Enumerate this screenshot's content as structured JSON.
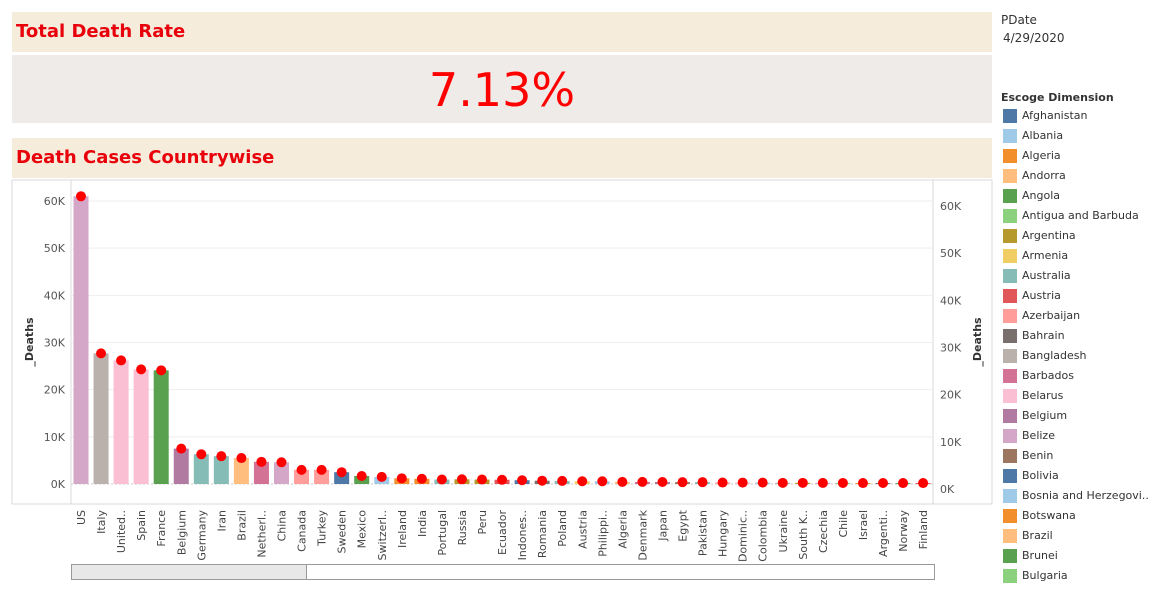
{
  "header": {
    "title": "Total Death Rate"
  },
  "kpi": {
    "value": "7.13%"
  },
  "section": {
    "title": "Death Cases Countrywise"
  },
  "filter": {
    "label": "PDate",
    "value": "4/29/2020"
  },
  "legend": {
    "title": "Escoge Dimension",
    "items": [
      {
        "label": "Afghanistan",
        "color": "#4e79a7"
      },
      {
        "label": "Albania",
        "color": "#a0cbe8"
      },
      {
        "label": "Algeria",
        "color": "#f28e2b"
      },
      {
        "label": "Andorra",
        "color": "#ffbe7d"
      },
      {
        "label": "Angola",
        "color": "#59a14f"
      },
      {
        "label": "Antigua and Barbuda",
        "color": "#8cd17d"
      },
      {
        "label": "Argentina",
        "color": "#b6992d"
      },
      {
        "label": "Armenia",
        "color": "#f1ce63"
      },
      {
        "label": "Australia",
        "color": "#86bcb6"
      },
      {
        "label": "Austria",
        "color": "#e15759"
      },
      {
        "label": "Azerbaijan",
        "color": "#ff9d9a"
      },
      {
        "label": "Bahrain",
        "color": "#79706e"
      },
      {
        "label": "Bangladesh",
        "color": "#bab0ac"
      },
      {
        "label": "Barbados",
        "color": "#d37295"
      },
      {
        "label": "Belarus",
        "color": "#fabfd2"
      },
      {
        "label": "Belgium",
        "color": "#b07aa1"
      },
      {
        "label": "Belize",
        "color": "#d4a6c8"
      },
      {
        "label": "Benin",
        "color": "#9d7660"
      },
      {
        "label": "Bolivia",
        "color": "#4e79a7"
      },
      {
        "label": "Bosnia and Herzegovi..",
        "color": "#a0cbe8"
      },
      {
        "label": "Botswana",
        "color": "#f28e2b"
      },
      {
        "label": "Brazil",
        "color": "#ffbe7d"
      },
      {
        "label": "Brunei",
        "color": "#59a14f"
      },
      {
        "label": "Bulgaria",
        "color": "#8cd17d"
      }
    ]
  },
  "chart_data": {
    "type": "bar",
    "ylabel": "_Deaths",
    "ylabel_right": "_Deaths",
    "ylim": [
      0,
      63000
    ],
    "yticks_left": [
      "0K",
      "10K",
      "20K",
      "30K",
      "40K",
      "50K",
      "60K"
    ],
    "yticks_right": [
      "0K",
      "10K",
      "20K",
      "30K",
      "40K",
      "50K",
      "60K"
    ],
    "grid": true,
    "categories": [
      "US",
      "Italy",
      "United..",
      "Spain",
      "France",
      "Belgium",
      "Germany",
      "Iran",
      "Brazil",
      "Netherl..",
      "China",
      "Canada",
      "Turkey",
      "Sweden",
      "Mexico",
      "Switzerl..",
      "Ireland",
      "India",
      "Portugal",
      "Russia",
      "Peru",
      "Ecuador",
      "Indones..",
      "Romania",
      "Poland",
      "Austria",
      "Philippi..",
      "Algeria",
      "Denmark",
      "Japan",
      "Egypt",
      "Pakistan",
      "Hungary",
      "Dominic..",
      "Colombia",
      "Ukraine",
      "South K..",
      "Czechia",
      "Chile",
      "Israel",
      "Argenti..",
      "Norway",
      "Finland"
    ],
    "series": [
      {
        "type": "bar",
        "values": [
          61000,
          27700,
          26200,
          24300,
          24100,
          7500,
          6300,
          5900,
          5500,
          4700,
          4600,
          3000,
          3000,
          2500,
          1700,
          1500,
          1200,
          1100,
          950,
          1000,
          950,
          900,
          800,
          700,
          650,
          580,
          570,
          440,
          440,
          420,
          390,
          390,
          310,
          300,
          290,
          250,
          250,
          230,
          220,
          200,
          210,
          200,
          200
        ]
      },
      {
        "type": "point",
        "values": [
          61000,
          27700,
          26200,
          24300,
          24100,
          7500,
          6300,
          5900,
          5500,
          4700,
          4600,
          3000,
          3000,
          2500,
          1700,
          1500,
          1200,
          1100,
          950,
          1000,
          950,
          900,
          800,
          700,
          650,
          580,
          570,
          440,
          440,
          420,
          390,
          390,
          310,
          300,
          290,
          250,
          250,
          230,
          220,
          200,
          210,
          200,
          200
        ],
        "color": "#ff0000"
      }
    ],
    "bar_colors": [
      "#d4a6c8",
      "#bab0ac",
      "#fabfd2",
      "#fabfd2",
      "#59a14f",
      "#b07aa1",
      "#86bcb6",
      "#86bcb6",
      "#ffbe7d",
      "#d37295",
      "#d4a6c8",
      "#ff9d9a",
      "#ff9d9a",
      "#4e79a7",
      "#59a14f",
      "#a0cbe8",
      "#f28e2b",
      "#f28e2b",
      "#86bcb6",
      "#b6992d",
      "#b6992d",
      "#e15759",
      "#4e79a7",
      "#79706e",
      "#86bcb6",
      "#f1ce63",
      "#a0cbe8",
      "#ffbe7d",
      "#d37295",
      "#b07aa1",
      "#9d7660",
      "#86bcb6",
      "#ff9d9a",
      "#fabfd2",
      "#a0cbe8",
      "#bab0ac",
      "#b6992d",
      "#d4a6c8",
      "#8cd17d",
      "#f28e2b",
      "#79706e",
      "#59a14f",
      "#e15759"
    ],
    "point_color": "#ff0000"
  }
}
